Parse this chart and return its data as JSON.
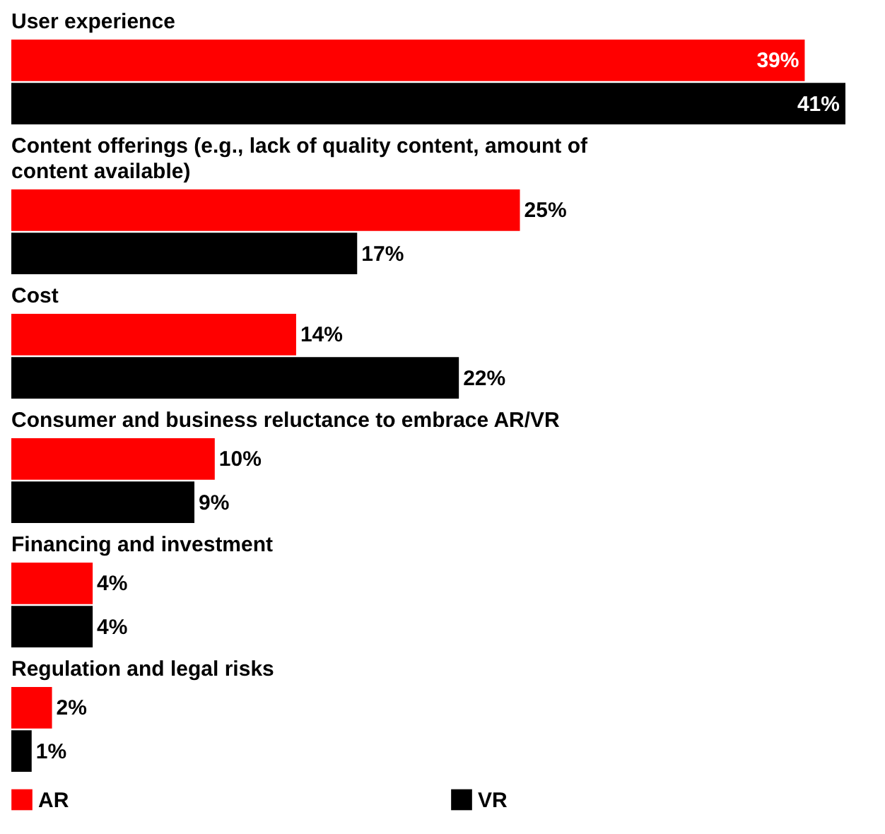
{
  "chart_data": {
    "type": "bar",
    "orientation": "horizontal",
    "categories": [
      "User experience",
      "Content offerings (e.g., lack of quality content, amount of content available)",
      "Cost",
      "Consumer and business reluctance to embrace AR/VR",
      "Financing and investment",
      "Regulation and legal risks"
    ],
    "series": [
      {
        "name": "AR",
        "color": "#ff0000",
        "values": [
          39,
          25,
          14,
          10,
          4,
          2
        ],
        "value_labels": [
          "39%",
          "25%",
          "14%",
          "10%",
          "4%",
          "2%"
        ]
      },
      {
        "name": "VR",
        "color": "#000000",
        "values": [
          41,
          17,
          22,
          9,
          4,
          1
        ],
        "value_labels": [
          "41%",
          "17%",
          "22%",
          "9%",
          "4%",
          "1%"
        ]
      }
    ],
    "legend": "bottom"
  }
}
